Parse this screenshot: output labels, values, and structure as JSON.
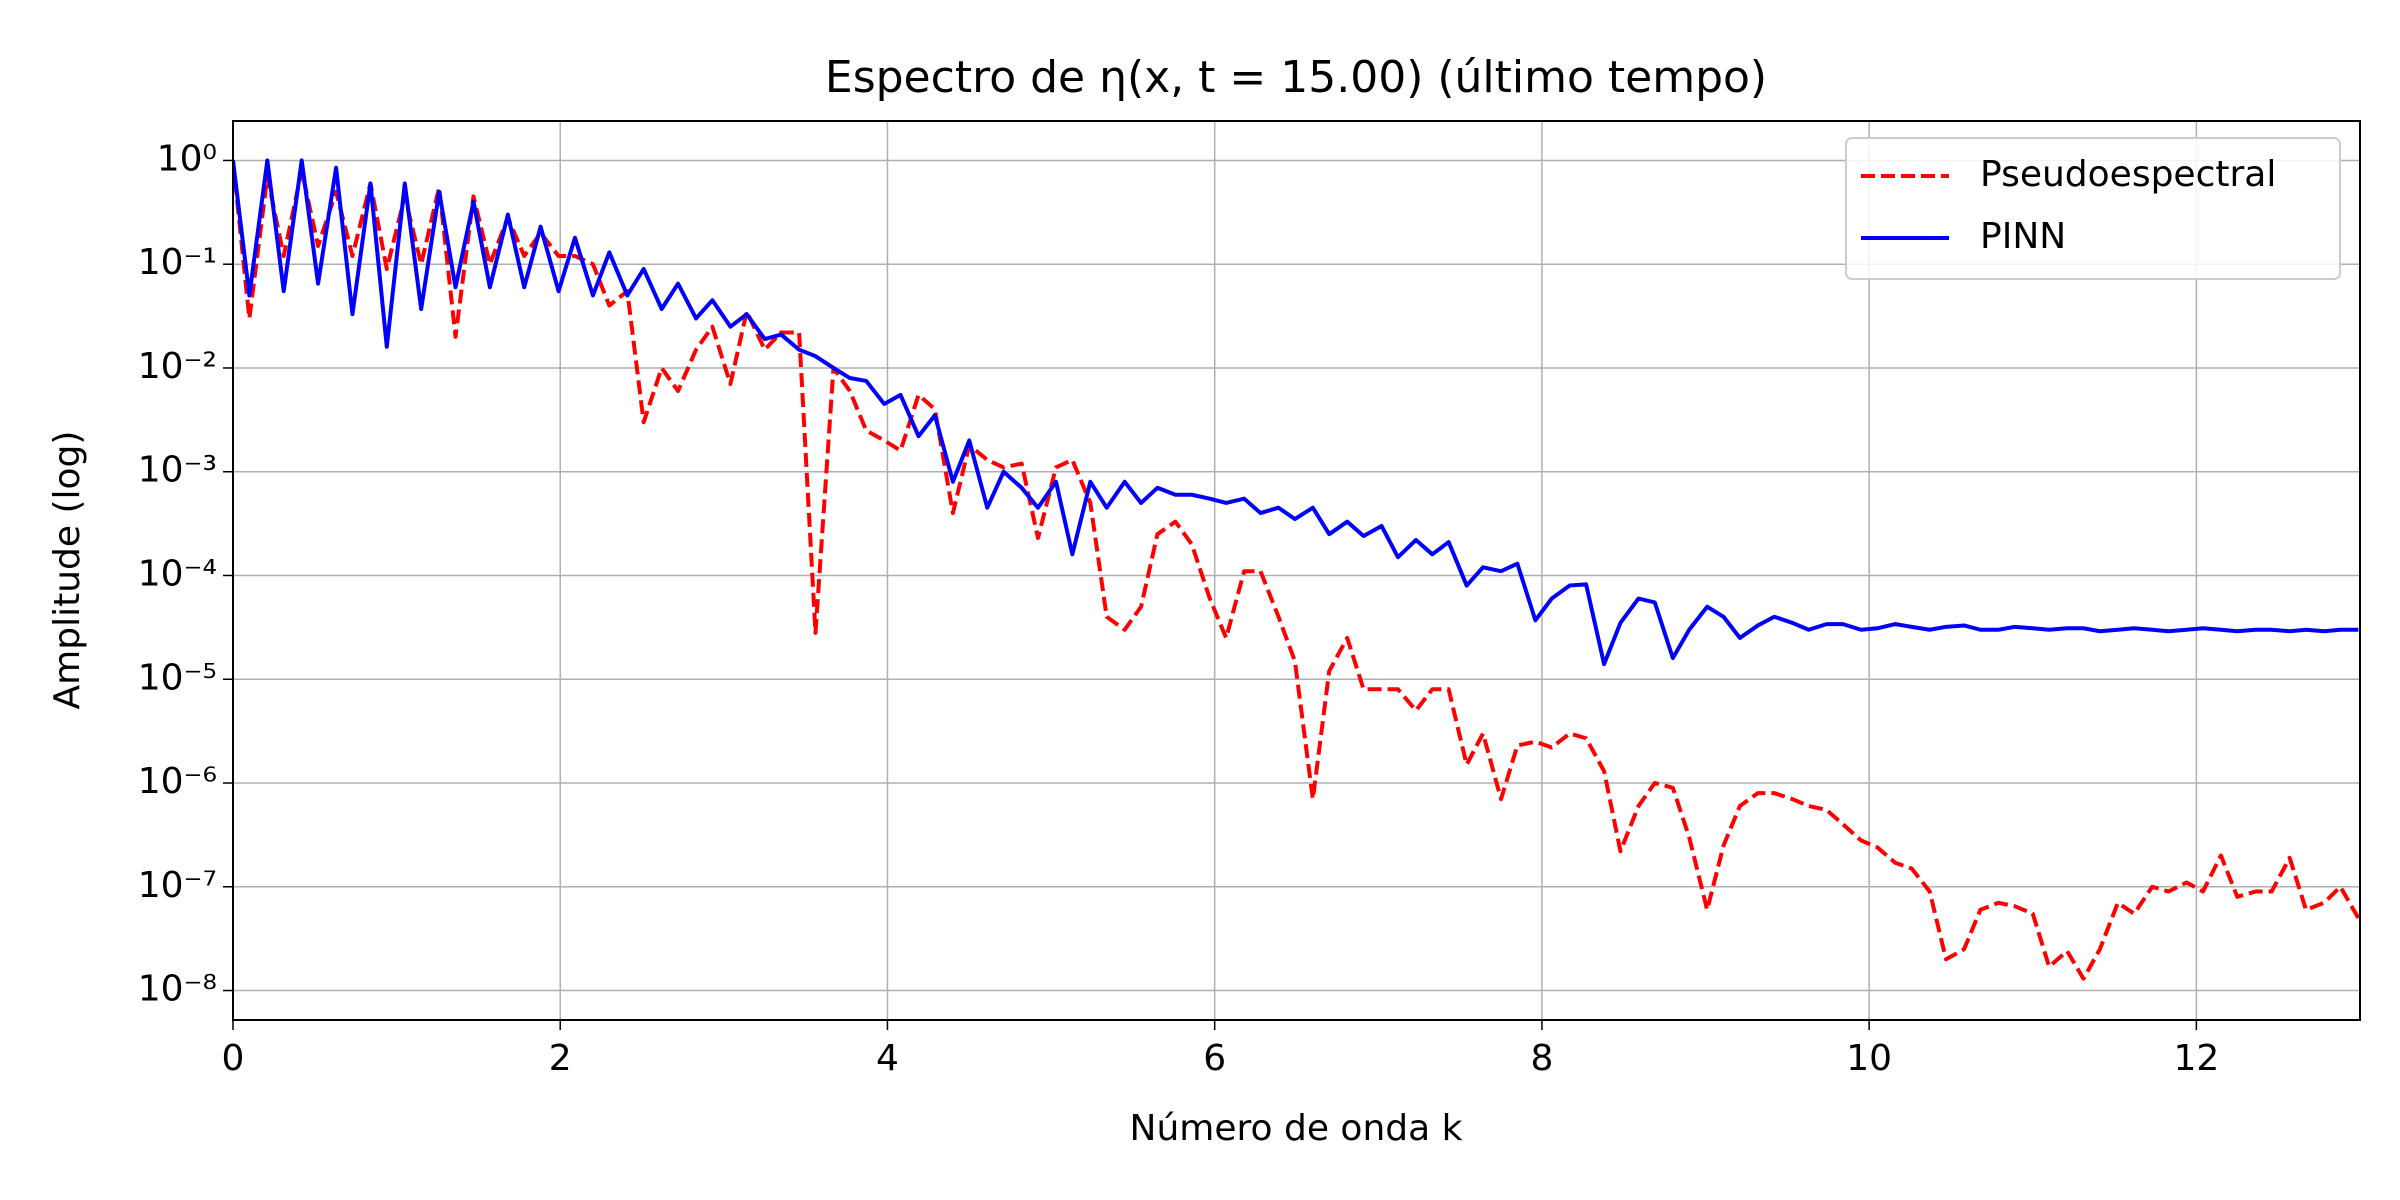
{
  "chart_data": {
    "type": "line",
    "title": "Espectro de η(x, t = 15.00) (último tempo)",
    "xlabel": "Número de onda k",
    "ylabel": "Amplitude (log)",
    "yscale": "log",
    "grid": true,
    "legend": "upper right",
    "xlim": [
      0,
      13
    ],
    "xticks": [
      0,
      2,
      4,
      6,
      8,
      10,
      12
    ],
    "ylim": [
      5.2e-09,
      2.4
    ],
    "yticks": [
      {
        "value": 1,
        "label": "10⁰"
      },
      {
        "value": 0.1,
        "label": "10⁻¹"
      },
      {
        "value": 0.01,
        "label": "10⁻²"
      },
      {
        "value": 0.001,
        "label": "10⁻³"
      },
      {
        "value": 0.0001,
        "label": "10⁻⁴"
      },
      {
        "value": 1e-05,
        "label": "10⁻⁵"
      },
      {
        "value": 1e-06,
        "label": "10⁻⁶"
      },
      {
        "value": 1e-07,
        "label": "10⁻⁷"
      },
      {
        "value": 1e-08,
        "label": "10⁻⁸"
      }
    ],
    "x": [
      0,
      0.1,
      0.21,
      0.31,
      0.42,
      0.52,
      0.63,
      0.73,
      0.84,
      0.94,
      1.05,
      1.15,
      1.26,
      1.36,
      1.47,
      1.57,
      1.68,
      1.78,
      1.88,
      1.99,
      2.09,
      2.2,
      2.3,
      2.41,
      2.51,
      2.62,
      2.72,
      2.83,
      2.93,
      3.04,
      3.14,
      3.25,
      3.35,
      3.46,
      3.56,
      3.67,
      3.77,
      3.87,
      3.98,
      4.08,
      4.19,
      4.29,
      4.4,
      4.5,
      4.61,
      4.71,
      4.82,
      4.92,
      5.03,
      5.13,
      5.24,
      5.34,
      5.45,
      5.55,
      5.65,
      5.76,
      5.86,
      5.97,
      6.07,
      6.18,
      6.28,
      6.39,
      6.49,
      6.6,
      6.7,
      6.81,
      6.91,
      7.02,
      7.12,
      7.23,
      7.33,
      7.43,
      7.54,
      7.64,
      7.75,
      7.85,
      7.96,
      8.06,
      8.17,
      8.27,
      8.38,
      8.48,
      8.59,
      8.69,
      8.8,
      8.9,
      9.01,
      9.11,
      9.21,
      9.32,
      9.42,
      9.53,
      9.63,
      9.74,
      9.84,
      9.95,
      10.05,
      10.16,
      10.26,
      10.37,
      10.47,
      10.58,
      10.68,
      10.79,
      10.89,
      11.0,
      11.1,
      11.21,
      11.31,
      11.41,
      11.52,
      11.62,
      11.73,
      11.83,
      11.94,
      12.04,
      12.15,
      12.25,
      12.36,
      12.46,
      12.57,
      12.67,
      12.78,
      12.88,
      12.99
    ],
    "series": [
      {
        "name": "Pseudoespectral",
        "color": "#ff0000",
        "linestyle": "dashed",
        "values": [
          1,
          0.03,
          0.7,
          0.12,
          0.8,
          0.15,
          0.5,
          0.12,
          0.6,
          0.09,
          0.45,
          0.1,
          0.55,
          0.02,
          0.45,
          0.1,
          0.28,
          0.12,
          0.2,
          0.12,
          0.12,
          0.1,
          0.04,
          0.055,
          0.003,
          0.01,
          0.006,
          0.015,
          0.025,
          0.007,
          0.035,
          0.015,
          0.022,
          0.022,
          2.8e-05,
          0.01,
          0.006,
          0.0025,
          0.002,
          0.0016,
          0.0055,
          0.004,
          0.0004,
          0.0018,
          0.0013,
          0.0011,
          0.0012,
          0.00023,
          0.0011,
          0.0013,
          0.0005,
          4e-05,
          3e-05,
          5e-05,
          0.00025,
          0.00033,
          0.0002,
          6e-05,
          2.5e-05,
          0.00011,
          0.00011,
          4e-05,
          1.5e-05,
          7e-07,
          1.2e-05,
          2.5e-05,
          8e-06,
          8e-06,
          8e-06,
          5e-06,
          8e-06,
          8e-06,
          1.5e-06,
          3e-06,
          7e-07,
          2.3e-06,
          2.5e-06,
          2.2e-06,
          3e-06,
          2.7e-06,
          1.3e-06,
          2.2e-07,
          6e-07,
          1e-06,
          9e-07,
          3e-07,
          6e-08,
          2.5e-07,
          6e-07,
          8e-07,
          8e-07,
          7e-07,
          6e-07,
          5.5e-07,
          4e-07,
          2.8e-07,
          2.4e-07,
          1.7e-07,
          1.5e-07,
          9e-08,
          2e-08,
          2.5e-08,
          6e-08,
          7e-08,
          6.5e-08,
          5.5e-08,
          1.7e-08,
          2.4e-08,
          1.3e-08,
          2.5e-08,
          7e-08,
          5.5e-08,
          1e-07,
          9e-08,
          1.1e-07,
          9e-08,
          2e-07,
          8e-08,
          9e-08,
          9e-08,
          1.9e-07,
          6e-08,
          7e-08,
          1e-07,
          5e-08
        ]
      },
      {
        "name": "PINN",
        "color": "#0000ff",
        "linestyle": "solid",
        "values": [
          1,
          0.05,
          1,
          0.055,
          1,
          0.065,
          0.85,
          0.033,
          0.6,
          0.016,
          0.6,
          0.037,
          0.5,
          0.06,
          0.4,
          0.06,
          0.3,
          0.06,
          0.23,
          0.055,
          0.18,
          0.05,
          0.13,
          0.05,
          0.09,
          0.037,
          0.065,
          0.03,
          0.045,
          0.025,
          0.033,
          0.019,
          0.021,
          0.015,
          0.013,
          0.01,
          0.008,
          0.0075,
          0.0045,
          0.0055,
          0.0022,
          0.0035,
          0.0008,
          0.002,
          0.00045,
          0.001,
          0.0007,
          0.00045,
          0.0008,
          0.00016,
          0.0008,
          0.00045,
          0.0008,
          0.0005,
          0.0007,
          0.0006,
          0.0006,
          0.00055,
          0.0005,
          0.00055,
          0.0004,
          0.00045,
          0.00035,
          0.00045,
          0.00025,
          0.00033,
          0.00024,
          0.0003,
          0.00015,
          0.00022,
          0.00016,
          0.00021,
          8e-05,
          0.00012,
          0.00011,
          0.00013,
          3.7e-05,
          6e-05,
          8e-05,
          8.2e-05,
          1.4e-05,
          3.5e-05,
          6e-05,
          5.5e-05,
          1.6e-05,
          3e-05,
          5e-05,
          4e-05,
          2.5e-05,
          3.3e-05,
          4e-05,
          3.5e-05,
          3e-05,
          3.4e-05,
          3.4e-05,
          3e-05,
          3.1e-05,
          3.4e-05,
          3.2e-05,
          3e-05,
          3.2e-05,
          3.3e-05,
          3e-05,
          3e-05,
          3.2e-05,
          3.1e-05,
          3e-05,
          3.1e-05,
          3.1e-05,
          2.9e-05,
          3e-05,
          3.1e-05,
          3e-05,
          2.9e-05,
          3e-05,
          3.1e-05,
          3e-05,
          2.9e-05,
          3e-05,
          3e-05,
          2.9e-05,
          3e-05,
          2.9e-05,
          3e-05,
          3e-05
        ]
      }
    ]
  }
}
